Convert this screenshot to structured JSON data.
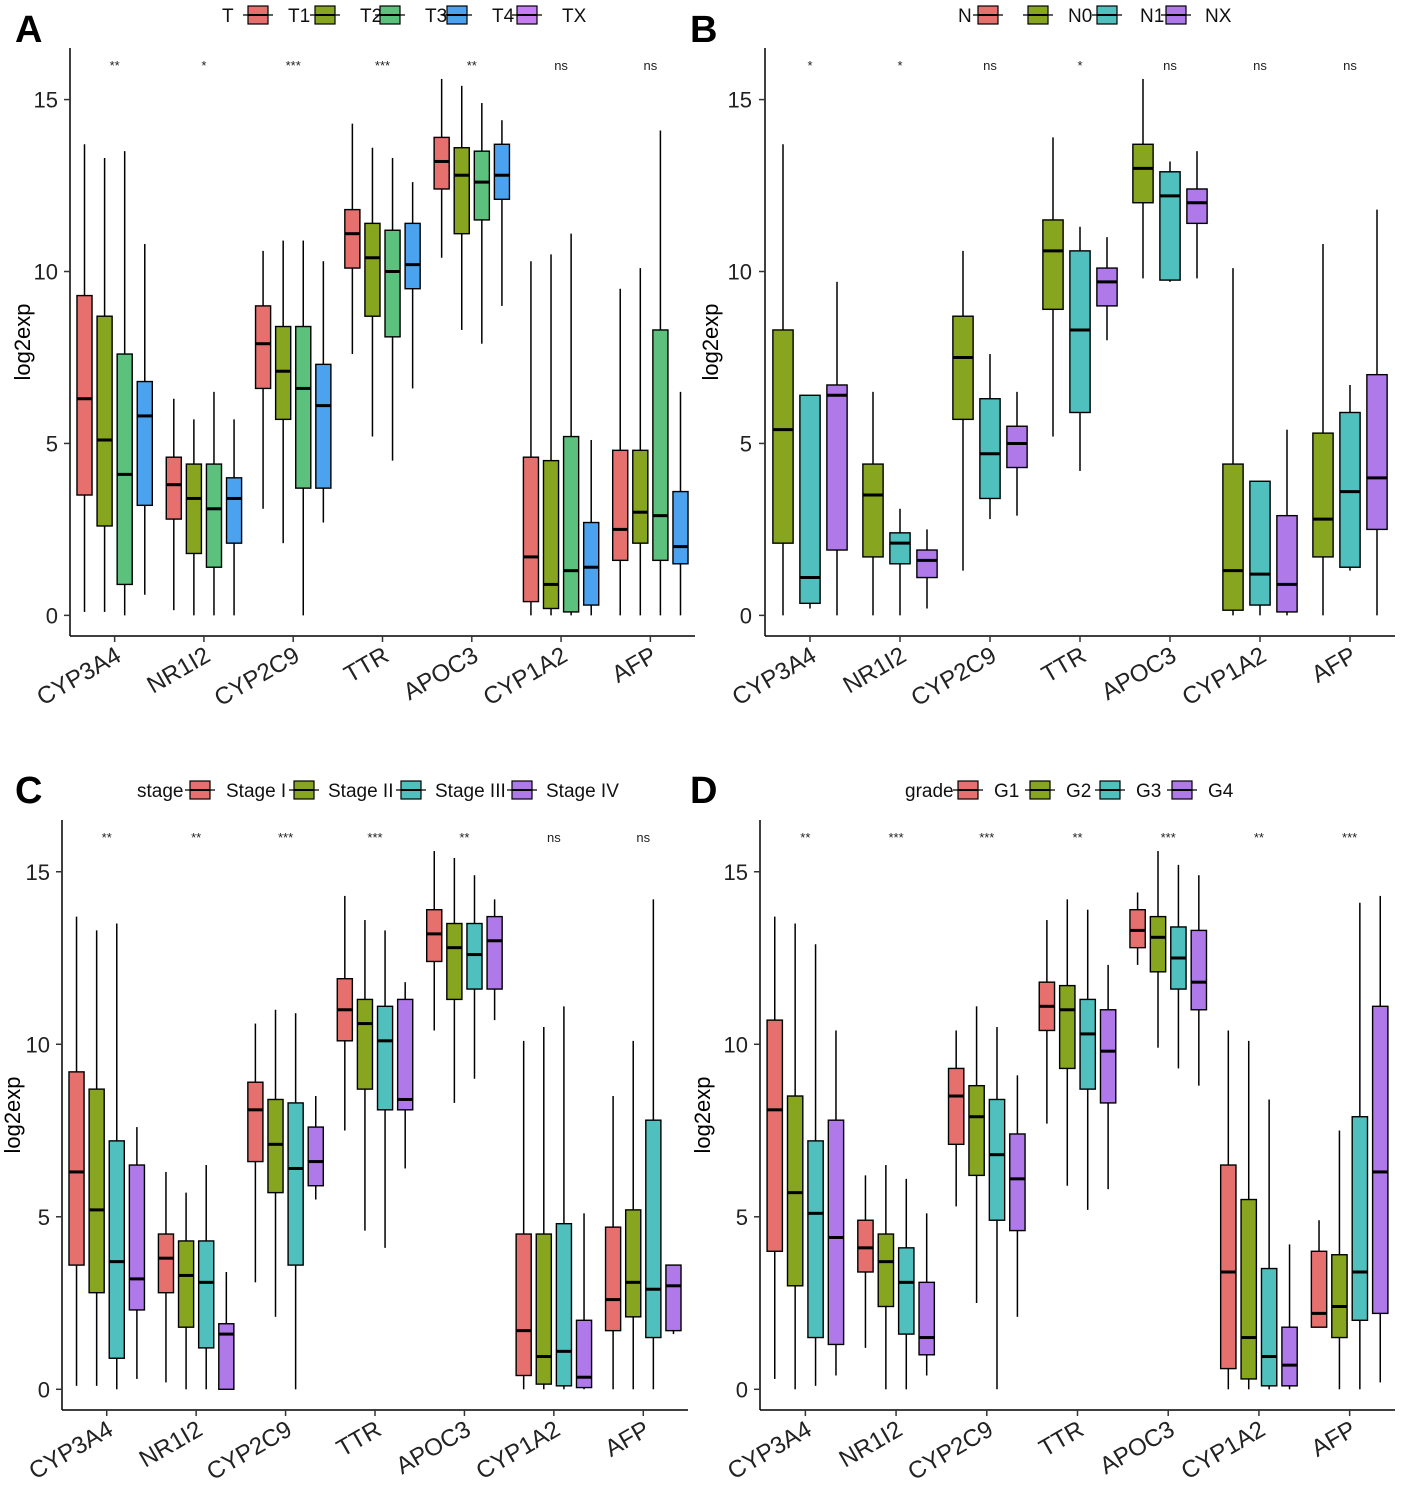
{
  "figure": {
    "colors": {
      "c1": "#e6706e",
      "c2": "#88a51f",
      "c3": "#4fc0bd",
      "c4": "#b079ea",
      "t3": "#5cc17c",
      "t4": "#4ba3ef",
      "tx": "#c77ef0"
    }
  },
  "chart_data": [
    {
      "panel": "A",
      "type": "box",
      "ylabel": "log2exp",
      "ylim": [
        -0.6,
        16.5
      ],
      "yticks": [
        0,
        5,
        10,
        15
      ],
      "categories": [
        "CYP3A4",
        "NR1I2",
        "CYP2C9",
        "TTR",
        "APOC3",
        "CYP1A2",
        "AFP"
      ],
      "significance": [
        "**",
        "*",
        "***",
        "***",
        "**",
        "ns",
        "ns"
      ],
      "legend": {
        "title": "T",
        "items": [
          "T1",
          "T2",
          "T3",
          "T4",
          "TX"
        ],
        "colors": [
          "#e6706e",
          "#88a51f",
          "#5cc17c",
          "#4ba3ef",
          "#c77ef0"
        ]
      },
      "n_slots": 4,
      "series": [
        {
          "name": "T1",
          "color": "#e6706e",
          "boxes": [
            [
              0.1,
              3.5,
              6.3,
              9.3,
              13.7
            ],
            [
              0.15,
              2.8,
              3.8,
              4.6,
              6.3
            ],
            [
              3.1,
              6.6,
              7.9,
              9.0,
              10.6
            ],
            [
              7.6,
              10.1,
              11.1,
              11.8,
              14.3
            ],
            [
              10.4,
              12.4,
              13.2,
              13.9,
              15.6
            ],
            [
              0.0,
              0.4,
              1.7,
              4.6,
              10.3
            ],
            [
              0.0,
              1.6,
              2.5,
              4.8,
              9.5
            ]
          ]
        },
        {
          "name": "T2",
          "color": "#88a51f",
          "boxes": [
            [
              0.1,
              2.6,
              5.1,
              8.7,
              13.3
            ],
            [
              0.0,
              1.8,
              3.4,
              4.4,
              5.7
            ],
            [
              2.1,
              5.7,
              7.1,
              8.4,
              10.9
            ],
            [
              5.2,
              8.7,
              10.4,
              11.4,
              13.6
            ],
            [
              8.3,
              11.1,
              12.8,
              13.6,
              15.4
            ],
            [
              0.0,
              0.2,
              0.9,
              4.5,
              10.5
            ],
            [
              0.0,
              2.1,
              3.0,
              4.8,
              10.1
            ]
          ]
        },
        {
          "name": "T3",
          "color": "#5cc17c",
          "boxes": [
            [
              0.0,
              0.9,
              4.1,
              7.6,
              13.5
            ],
            [
              0.0,
              1.4,
              3.1,
              4.4,
              6.5
            ],
            [
              0.0,
              3.7,
              6.6,
              8.4,
              10.9
            ],
            [
              4.5,
              8.1,
              10.0,
              11.2,
              13.3
            ],
            [
              7.9,
              11.5,
              12.6,
              13.5,
              14.9
            ],
            [
              0.0,
              0.1,
              1.3,
              5.2,
              11.1
            ],
            [
              0.0,
              1.6,
              2.9,
              8.3,
              14.1
            ]
          ]
        },
        {
          "name": "T4",
          "color": "#4ba3ef",
          "boxes": [
            [
              0.6,
              3.2,
              5.8,
              6.8,
              10.8
            ],
            [
              0.0,
              2.1,
              3.4,
              4.0,
              5.7
            ],
            [
              2.7,
              3.7,
              6.1,
              7.3,
              10.3
            ],
            [
              6.6,
              9.5,
              10.2,
              11.4,
              12.6
            ],
            [
              9.0,
              12.1,
              12.8,
              13.7,
              14.4
            ],
            [
              0.0,
              0.3,
              1.4,
              2.7,
              5.1
            ],
            [
              0.0,
              1.5,
              2.0,
              3.6,
              6.5
            ]
          ]
        }
      ]
    },
    {
      "panel": "B",
      "type": "box",
      "ylabel": "log2exp",
      "ylim": [
        -0.6,
        16.5
      ],
      "yticks": [
        0,
        5,
        10,
        15
      ],
      "categories": [
        "CYP3A4",
        "NR1I2",
        "CYP2C9",
        "TTR",
        "APOC3",
        "CYP1A2",
        "AFP"
      ],
      "significance": [
        "*",
        "*",
        "ns",
        "*",
        "ns",
        "ns",
        "ns"
      ],
      "legend": {
        "title": "N",
        "items": [
          "",
          "N0",
          "N1",
          "NX"
        ],
        "colors": [
          "#e6706e",
          "#88a51f",
          "#4fc0bd",
          "#b079ea"
        ]
      },
      "n_slots": 3,
      "series": [
        {
          "name": "N0",
          "color": "#88a51f",
          "boxes": [
            [
              0.0,
              2.1,
              5.4,
              8.3,
              13.7
            ],
            [
              0.0,
              1.7,
              3.5,
              4.4,
              6.5
            ],
            [
              1.3,
              5.7,
              7.5,
              8.7,
              10.6
            ],
            [
              5.2,
              8.9,
              10.6,
              11.5,
              13.9
            ],
            [
              9.8,
              12.0,
              13.0,
              13.7,
              15.6
            ],
            [
              0.0,
              0.15,
              1.3,
              4.4,
              10.1
            ],
            [
              0.0,
              1.7,
              2.8,
              5.3,
              10.8
            ]
          ]
        },
        {
          "name": "N1",
          "color": "#4fc0bd",
          "boxes": [
            [
              0.2,
              0.35,
              1.1,
              6.4,
              6.4
            ],
            [
              0.0,
              1.5,
              2.1,
              2.4,
              3.1
            ],
            [
              2.8,
              3.4,
              4.7,
              6.3,
              7.6
            ],
            [
              4.2,
              5.9,
              8.3,
              10.6,
              11.3
            ],
            [
              9.7,
              9.75,
              12.2,
              12.9,
              13.2
            ],
            [
              0.0,
              0.3,
              1.2,
              3.9,
              3.9
            ],
            [
              1.3,
              1.4,
              3.6,
              5.9,
              6.7
            ]
          ]
        },
        {
          "name": "NX",
          "color": "#b079ea",
          "boxes": [
            [
              0.0,
              1.9,
              6.4,
              6.7,
              9.7
            ],
            [
              0.2,
              1.1,
              1.6,
              1.9,
              2.5
            ],
            [
              2.9,
              4.3,
              5.0,
              5.5,
              6.5
            ],
            [
              8.0,
              9.0,
              9.7,
              10.1,
              11.0
            ],
            [
              9.8,
              11.4,
              12.0,
              12.4,
              13.5
            ],
            [
              0.0,
              0.1,
              0.9,
              2.9,
              5.4
            ],
            [
              0.0,
              2.5,
              4.0,
              7.0,
              11.8
            ]
          ]
        }
      ]
    },
    {
      "panel": "C",
      "type": "box",
      "ylabel": "log2exp",
      "ylim": [
        -0.6,
        16.5
      ],
      "yticks": [
        0,
        5,
        10,
        15
      ],
      "categories": [
        "CYP3A4",
        "NR1I2",
        "CYP2C9",
        "TTR",
        "APOC3",
        "CYP1A2",
        "AFP"
      ],
      "significance": [
        "**",
        "**",
        "***",
        "***",
        "**",
        "ns",
        "ns"
      ],
      "legend": {
        "title": "stage",
        "items": [
          "Stage I",
          "Stage II",
          "Stage III",
          "Stage IV"
        ],
        "colors": [
          "#e6706e",
          "#88a51f",
          "#4fc0bd",
          "#b079ea"
        ]
      },
      "n_slots": 4,
      "series": [
        {
          "name": "Stage I",
          "color": "#e6706e",
          "boxes": [
            [
              0.1,
              3.6,
              6.3,
              9.2,
              13.7
            ],
            [
              0.2,
              2.8,
              3.8,
              4.5,
              6.3
            ],
            [
              3.1,
              6.6,
              8.1,
              8.9,
              10.6
            ],
            [
              7.5,
              10.1,
              11.0,
              11.9,
              14.3
            ],
            [
              10.4,
              12.4,
              13.2,
              13.9,
              15.6
            ],
            [
              0.0,
              0.4,
              1.7,
              4.5,
              10.1
            ],
            [
              0.0,
              1.7,
              2.6,
              4.7,
              8.5
            ]
          ]
        },
        {
          "name": "Stage II",
          "color": "#88a51f",
          "boxes": [
            [
              0.1,
              2.8,
              5.2,
              8.7,
              13.3
            ],
            [
              0.0,
              1.8,
              3.3,
              4.3,
              5.7
            ],
            [
              2.1,
              5.7,
              7.1,
              8.4,
              11.0
            ],
            [
              4.6,
              8.7,
              10.6,
              11.3,
              13.6
            ],
            [
              8.3,
              11.3,
              12.8,
              13.5,
              15.4
            ],
            [
              0.0,
              0.15,
              0.95,
              4.5,
              10.5
            ],
            [
              0.0,
              2.1,
              3.1,
              5.2,
              10.1
            ]
          ]
        },
        {
          "name": "Stage III",
          "color": "#4fc0bd",
          "boxes": [
            [
              0.0,
              0.9,
              3.7,
              7.2,
              13.5
            ],
            [
              0.0,
              1.2,
              3.1,
              4.3,
              6.5
            ],
            [
              0.0,
              3.6,
              6.4,
              8.3,
              10.9
            ],
            [
              4.1,
              8.1,
              10.1,
              11.1,
              13.3
            ],
            [
              9.0,
              11.6,
              12.6,
              13.5,
              14.9
            ],
            [
              0.0,
              0.1,
              1.1,
              4.8,
              11.1
            ],
            [
              0.0,
              1.5,
              2.9,
              7.8,
              14.2
            ]
          ]
        },
        {
          "name": "Stage IV",
          "color": "#b079ea",
          "boxes": [
            [
              0.3,
              2.3,
              3.2,
              6.5,
              7.6
            ],
            [
              0.0,
              0.0,
              1.6,
              1.9,
              3.4
            ],
            [
              5.5,
              5.9,
              6.6,
              7.6,
              8.5
            ],
            [
              6.4,
              8.1,
              8.4,
              11.3,
              11.8
            ],
            [
              10.7,
              11.6,
              13.0,
              13.7,
              14.2
            ],
            [
              0.0,
              0.05,
              0.35,
              2.0,
              5.1
            ],
            [
              1.6,
              1.7,
              3.0,
              3.6,
              3.6
            ]
          ]
        }
      ]
    },
    {
      "panel": "D",
      "type": "box",
      "ylabel": "log2exp",
      "ylim": [
        -0.6,
        16.5
      ],
      "yticks": [
        0,
        5,
        10,
        15
      ],
      "categories": [
        "CYP3A4",
        "NR1I2",
        "CYP2C9",
        "TTR",
        "APOC3",
        "CYP1A2",
        "AFP"
      ],
      "significance": [
        "**",
        "***",
        "***",
        "**",
        "***",
        "**",
        "***"
      ],
      "legend": {
        "title": "grade",
        "items": [
          "G1",
          "G2",
          "G3",
          "G4"
        ],
        "colors": [
          "#e6706e",
          "#88a51f",
          "#4fc0bd",
          "#b079ea"
        ]
      },
      "n_slots": 4,
      "series": [
        {
          "name": "G1",
          "color": "#e6706e",
          "boxes": [
            [
              0.3,
              4.0,
              8.1,
              10.7,
              13.7
            ],
            [
              1.2,
              3.4,
              4.1,
              4.9,
              6.2
            ],
            [
              5.3,
              7.1,
              8.5,
              9.3,
              10.4
            ],
            [
              7.7,
              10.4,
              11.1,
              11.8,
              13.6
            ],
            [
              12.3,
              12.8,
              13.3,
              13.9,
              14.4
            ],
            [
              0.0,
              0.6,
              3.4,
              6.5,
              10.4
            ],
            [
              1.8,
              1.8,
              2.2,
              4.0,
              4.9
            ]
          ]
        },
        {
          "name": "G2",
          "color": "#88a51f",
          "boxes": [
            [
              0.0,
              3.0,
              5.7,
              8.5,
              13.5
            ],
            [
              0.0,
              2.4,
              3.7,
              4.5,
              6.5
            ],
            [
              2.5,
              6.2,
              7.9,
              8.8,
              11.1
            ],
            [
              5.9,
              9.3,
              11.0,
              11.7,
              14.2
            ],
            [
              9.9,
              12.1,
              13.1,
              13.7,
              15.6
            ],
            [
              0.0,
              0.3,
              1.5,
              5.5,
              10.1
            ],
            [
              0.0,
              1.5,
              2.4,
              3.9,
              7.5
            ]
          ]
        },
        {
          "name": "G3",
          "color": "#4fc0bd",
          "boxes": [
            [
              0.1,
              1.5,
              5.1,
              7.2,
              12.9
            ],
            [
              0.0,
              1.6,
              3.1,
              4.1,
              6.1
            ],
            [
              0.0,
              4.9,
              6.8,
              8.4,
              10.5
            ],
            [
              5.2,
              8.7,
              10.3,
              11.3,
              13.9
            ],
            [
              9.3,
              11.6,
              12.5,
              13.4,
              15.2
            ],
            [
              0.0,
              0.1,
              0.95,
              3.5,
              8.4
            ],
            [
              0.0,
              2.0,
              3.4,
              7.9,
              14.1
            ]
          ]
        },
        {
          "name": "G4",
          "color": "#b079ea",
          "boxes": [
            [
              0.4,
              1.3,
              4.4,
              7.8,
              10.4
            ],
            [
              0.4,
              1.0,
              1.5,
              3.1,
              5.1
            ],
            [
              2.1,
              4.6,
              6.1,
              7.4,
              9.1
            ],
            [
              5.8,
              8.3,
              9.8,
              11.0,
              12.3
            ],
            [
              8.8,
              11.0,
              11.8,
              13.3,
              14.9
            ],
            [
              0.0,
              0.1,
              0.7,
              1.8,
              4.2
            ],
            [
              0.2,
              2.2,
              6.3,
              11.1,
              14.3
            ]
          ]
        }
      ]
    }
  ]
}
